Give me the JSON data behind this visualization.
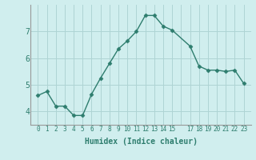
{
  "x": [
    0,
    1,
    2,
    3,
    4,
    5,
    6,
    7,
    8,
    9,
    10,
    11,
    12,
    13,
    14,
    15,
    17,
    18,
    19,
    20,
    21,
    22,
    23
  ],
  "y": [
    4.6,
    4.75,
    4.2,
    4.2,
    3.85,
    3.85,
    4.65,
    5.25,
    5.8,
    6.35,
    6.65,
    7.0,
    7.6,
    7.6,
    7.2,
    7.05,
    6.45,
    5.7,
    5.55,
    5.55,
    5.5,
    5.55,
    5.05
  ],
  "line_color": "#2e7d6e",
  "marker": "D",
  "markersize": 2.5,
  "linewidth": 1.0,
  "xlabel": "Humidex (Indice chaleur)",
  "bg_color": "#d0eeee",
  "grid_color": "#aed4d4",
  "ylim": [
    3.5,
    8.0
  ],
  "yticks": [
    4,
    5,
    6,
    7
  ],
  "all_x": [
    0,
    1,
    2,
    3,
    4,
    5,
    6,
    7,
    8,
    9,
    10,
    11,
    12,
    13,
    14,
    15,
    16,
    17,
    18,
    19,
    20,
    21,
    22,
    23
  ],
  "xtick_labels": [
    "0",
    "1",
    "2",
    "3",
    "4",
    "5",
    "6",
    "7",
    "8",
    "9",
    "10",
    "11",
    "12",
    "13",
    "14",
    "15",
    "",
    "17",
    "18",
    "19",
    "20",
    "21",
    "22",
    "23"
  ]
}
